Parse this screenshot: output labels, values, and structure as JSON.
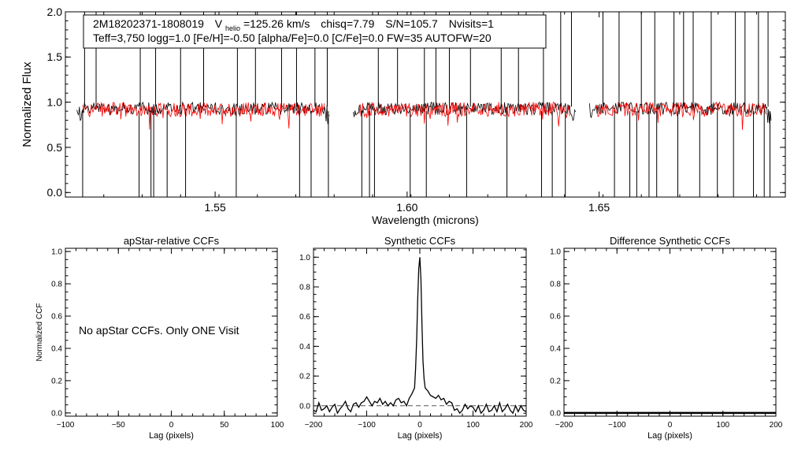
{
  "figure": {
    "legend": {
      "star_id": "2M18202371-1808019",
      "vhelio_v": "V",
      "vhelio_sub": "helio",
      "vhelio_value": "=125.26 km/s",
      "chisq": "chisq=7.79",
      "snr": "S/N=105.7",
      "nvisits": "Nvisits=1",
      "params": "Teff=3,750 logg=1.0 [Fe/H]=-0.50 [alpha/Fe]=0.0 [C/Fe]=0.0 FW=35 AUTOFW=20"
    },
    "no_ccf_message": "No apStar CCFs.  Only ONE Visit"
  },
  "colors": {
    "observed": "#000000",
    "model": "#ff0000",
    "axis": "#000000",
    "zero_line": "#555555"
  },
  "chart_data": [
    {
      "id": "spectrum",
      "type": "line",
      "title": "",
      "xlabel": "Wavelength (microns)",
      "ylabel": "Normalized Flux",
      "xlim": [
        1.511,
        1.6985
      ],
      "ylim": [
        -0.05,
        2.0
      ],
      "xticks": [
        1.55,
        1.6,
        1.65
      ],
      "xtick_labels": [
        "1.55",
        "1.60",
        "1.65"
      ],
      "yticks": [
        0.0,
        0.5,
        1.0,
        1.5,
        2.0
      ],
      "ytick_labels": [
        "0.0",
        "0.5",
        "1.0",
        "1.5",
        "2.0"
      ],
      "chips": [
        [
          1.514,
          1.58
        ],
        [
          1.586,
          1.644
        ],
        [
          1.6475,
          1.695
        ]
      ],
      "series": [
        {
          "name": "observed",
          "baseline": 0.93,
          "noise": 0.07
        },
        {
          "name": "model",
          "baseline": 0.92,
          "noise": 0.08
        }
      ],
      "emission_spikes": [
        1.516,
        1.519,
        1.5305,
        1.5345,
        1.541,
        1.547,
        1.5558,
        1.5605,
        1.5673,
        1.5712,
        1.576,
        1.5792,
        1.5925,
        1.5975,
        1.6045,
        1.6075,
        1.611,
        1.6165,
        1.6245,
        1.629,
        1.6355,
        1.64,
        1.6428,
        1.651,
        1.6552,
        1.661,
        1.6645,
        1.6695,
        1.672,
        1.6745,
        1.6792,
        1.6855,
        1.688,
        1.6915,
        1.694
      ],
      "absorption_dips": [
        1.5155,
        1.5302,
        1.5333,
        1.534,
        1.5375,
        1.5423,
        1.5555,
        1.572,
        1.575,
        1.5795,
        1.5882,
        1.5902,
        1.5915,
        1.6008,
        1.605,
        1.6155,
        1.626,
        1.635,
        1.6378,
        1.6412,
        1.654,
        1.658,
        1.6598,
        1.663,
        1.665,
        1.6705,
        1.6762,
        1.6808,
        1.685,
        1.6902,
        1.693,
        1.6945
      ]
    },
    {
      "id": "apstar-ccf",
      "type": "line",
      "title": "apStar-relative CCFs",
      "xlabel": "Lag (pixels)",
      "ylabel": "Normalized CCF",
      "xlim": [
        -100,
        100
      ],
      "ylim": [
        -0.02,
        1.02
      ],
      "xticks": [
        -100,
        -50,
        0,
        50,
        100
      ],
      "xtick_labels": [
        "−100",
        "−50",
        "0",
        "50",
        "100"
      ],
      "yticks": [
        0.0,
        0.2,
        0.4,
        0.6,
        0.8,
        1.0
      ],
      "ytick_labels": [
        "0.0",
        "0.2",
        "0.4",
        "0.6",
        "0.8",
        "1.0"
      ],
      "series": []
    },
    {
      "id": "synthetic-ccf",
      "type": "line",
      "title": "Synthetic CCFs",
      "xlabel": "Lag (pixels)",
      "ylabel": "",
      "xlim": [
        -200,
        200
      ],
      "ylim": [
        -0.07,
        1.06
      ],
      "xticks": [
        -200,
        -100,
        0,
        100,
        200
      ],
      "xtick_labels": [
        "−200",
        "−100",
        "0",
        "100",
        "200"
      ],
      "yticks": [
        0.0,
        0.2,
        0.4,
        0.6,
        0.8,
        1.0
      ],
      "ytick_labels": [
        "0.0",
        "0.2",
        "0.4",
        "0.6",
        "0.8",
        "1.0"
      ],
      "zero_line": 0.0,
      "series": [
        {
          "name": "ccf",
          "x": [
            -200,
            -195,
            -190,
            -185,
            -180,
            -175,
            -170,
            -165,
            -160,
            -155,
            -150,
            -145,
            -140,
            -135,
            -130,
            -125,
            -120,
            -115,
            -110,
            -105,
            -100,
            -95,
            -90,
            -85,
            -80,
            -75,
            -70,
            -65,
            -60,
            -55,
            -50,
            -45,
            -40,
            -35,
            -30,
            -25,
            -20,
            -15,
            -10,
            -8,
            -6,
            -4,
            -2,
            0,
            2,
            4,
            6,
            8,
            10,
            15,
            20,
            25,
            30,
            35,
            40,
            45,
            50,
            55,
            60,
            65,
            70,
            75,
            80,
            85,
            90,
            95,
            100,
            105,
            110,
            115,
            120,
            125,
            130,
            135,
            140,
            145,
            150,
            155,
            160,
            165,
            170,
            175,
            180,
            185,
            190,
            195,
            200
          ],
          "y": [
            -0.03,
            -0.04,
            0.02,
            -0.03,
            -0.02,
            0.0,
            -0.04,
            -0.01,
            0.01,
            -0.05,
            -0.02,
            0.0,
            0.03,
            -0.02,
            -0.04,
            0.01,
            0.02,
            -0.01,
            0.02,
            0.03,
            0.06,
            0.03,
            0.0,
            0.03,
            0.02,
            0.05,
            0.01,
            0.03,
            0.0,
            0.02,
            0.0,
            0.04,
            0.05,
            0.02,
            0.03,
            0.0,
            0.05,
            0.08,
            0.12,
            0.25,
            0.45,
            0.72,
            0.92,
            1.0,
            0.85,
            0.55,
            0.3,
            0.18,
            0.12,
            0.1,
            0.07,
            0.06,
            0.05,
            0.07,
            0.04,
            0.05,
            0.01,
            0.03,
            0.02,
            -0.03,
            -0.02,
            -0.05,
            -0.03,
            0.01,
            -0.02,
            0.0,
            -0.01,
            -0.04,
            0.0,
            -0.05,
            -0.03,
            0.01,
            -0.04,
            -0.03,
            0.0,
            -0.04,
            0.02,
            -0.04,
            -0.02,
            0.01,
            -0.03,
            -0.05,
            0.0,
            -0.04,
            0.0,
            -0.03,
            -0.04
          ]
        }
      ]
    },
    {
      "id": "difference-ccf",
      "type": "line",
      "title": "Difference Synthetic CCFs",
      "xlabel": "Lag (pixels)",
      "ylabel": "",
      "xlim": [
        -200,
        200
      ],
      "ylim": [
        -0.02,
        1.02
      ],
      "xticks": [
        -200,
        -100,
        0,
        100,
        200
      ],
      "xtick_labels": [
        "−200",
        "−100",
        "0",
        "100",
        "200"
      ],
      "yticks": [
        0.0,
        0.2,
        0.4,
        0.6,
        0.8,
        1.0
      ],
      "ytick_labels": [
        "0.0",
        "0.2",
        "0.4",
        "0.6",
        "0.8",
        "1.0"
      ],
      "series": [
        {
          "name": "difference",
          "x": [
            -200,
            200
          ],
          "y": [
            0.0,
            0.0
          ]
        }
      ]
    }
  ]
}
